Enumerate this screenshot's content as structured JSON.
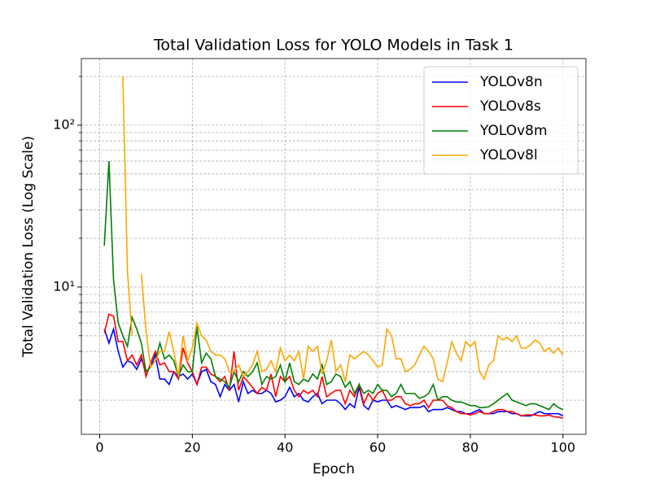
{
  "chart_data": {
    "type": "line",
    "title": "Total Validation Loss for YOLO Models in Task 1",
    "xlabel": "Epoch",
    "ylabel": "Total Validation Loss (Log Scale)",
    "x": [
      1,
      2,
      3,
      4,
      5,
      6,
      7,
      8,
      9,
      10,
      11,
      12,
      13,
      14,
      15,
      16,
      17,
      18,
      19,
      20,
      21,
      22,
      23,
      24,
      25,
      26,
      27,
      28,
      29,
      30,
      31,
      32,
      33,
      34,
      35,
      36,
      37,
      38,
      39,
      40,
      41,
      42,
      43,
      44,
      45,
      46,
      47,
      48,
      49,
      50,
      51,
      52,
      53,
      54,
      55,
      56,
      57,
      58,
      59,
      60,
      61,
      62,
      63,
      64,
      65,
      66,
      67,
      68,
      69,
      70,
      71,
      72,
      73,
      74,
      75,
      76,
      77,
      78,
      79,
      80,
      81,
      82,
      83,
      84,
      85,
      86,
      87,
      88,
      89,
      90,
      91,
      92,
      93,
      94,
      95,
      96,
      97,
      98,
      99,
      100
    ],
    "series": [
      {
        "name": "YOLOv8n",
        "color": "#0000ff",
        "values": [
          5.5,
          4.5,
          5.5,
          4.0,
          3.2,
          3.5,
          3.4,
          3.1,
          3.6,
          3.0,
          3.2,
          3.8,
          2.7,
          2.7,
          2.5,
          3.0,
          2.8,
          2.9,
          2.7,
          2.9,
          2.5,
          3.0,
          3.1,
          2.6,
          2.5,
          2.1,
          2.5,
          2.3,
          2.5,
          1.95,
          2.6,
          2.2,
          2.3,
          2.2,
          2.2,
          2.3,
          2.2,
          1.95,
          2.0,
          2.1,
          2.4,
          2.1,
          2.2,
          2.0,
          1.95,
          2.1,
          2.2,
          1.9,
          2.0,
          2.0,
          2.0,
          1.9,
          1.75,
          1.9,
          1.8,
          2.4,
          1.85,
          1.75,
          2.0,
          1.95,
          2.0,
          2.0,
          1.8,
          1.85,
          1.8,
          1.75,
          1.8,
          1.8,
          1.8,
          1.85,
          1.7,
          1.75,
          1.75,
          1.75,
          1.8,
          1.75,
          1.7,
          1.7,
          1.65,
          1.65,
          1.7,
          1.75,
          1.65,
          1.65,
          1.65,
          1.7,
          1.7,
          1.7,
          1.65,
          1.65,
          1.6,
          1.6,
          1.6,
          1.65,
          1.7,
          1.65,
          1.65,
          1.65,
          1.65,
          1.6
        ]
      },
      {
        "name": "YOLOv8s",
        "color": "#ff0000",
        "values": [
          5.2,
          6.8,
          6.6,
          4.6,
          4.6,
          3.5,
          3.8,
          3.3,
          3.8,
          2.8,
          3.4,
          4.0,
          3.3,
          3.4,
          3.0,
          3.0,
          2.7,
          4.2,
          3.4,
          3.0,
          2.5,
          3.2,
          3.2,
          2.9,
          2.8,
          2.6,
          2.8,
          2.3,
          4.0,
          2.3,
          2.8,
          2.6,
          2.4,
          2.2,
          2.4,
          2.3,
          2.9,
          2.1,
          2.8,
          2.6,
          2.8,
          2.3,
          2.1,
          2.3,
          2.2,
          2.3,
          2.1,
          2.8,
          2.1,
          2.2,
          2.3,
          2.3,
          1.9,
          2.3,
          2.1,
          2.5,
          1.9,
          2.2,
          2.0,
          2.2,
          2.3,
          2.0,
          2.0,
          2.1,
          2.1,
          1.9,
          1.85,
          1.9,
          1.9,
          2.0,
          1.8,
          2.0,
          2.0,
          2.0,
          1.85,
          1.8,
          1.7,
          1.65,
          1.65,
          1.62,
          1.65,
          1.7,
          1.65,
          1.65,
          1.7,
          1.75,
          1.75,
          1.7,
          1.7,
          1.65,
          1.6,
          1.62,
          1.62,
          1.62,
          1.6,
          1.6,
          1.62,
          1.58,
          1.57,
          1.55
        ]
      },
      {
        "name": "YOLOv8m",
        "color": "#008000",
        "values": [
          18,
          60,
          11,
          6,
          5,
          4.3,
          6.5,
          5.5,
          4.5,
          3.0,
          3.2,
          3.5,
          4.5,
          3.6,
          3.8,
          3.5,
          2.8,
          3.3,
          3.0,
          3.0,
          5.7,
          3.4,
          3.9,
          3.6,
          2.8,
          2.7,
          2.6,
          2.4,
          3.0,
          2.6,
          3.0,
          2.8,
          3.0,
          3.4,
          2.5,
          2.8,
          2.7,
          2.8,
          3.3,
          2.6,
          3.4,
          2.6,
          2.5,
          2.7,
          2.6,
          2.9,
          2.7,
          3.3,
          2.5,
          2.6,
          2.9,
          2.8,
          2.4,
          2.6,
          2.2,
          2.5,
          2.2,
          2.3,
          2.2,
          2.5,
          2.3,
          2.3,
          2.1,
          2.2,
          2.5,
          2.2,
          2.2,
          2.2,
          2.05,
          2.1,
          2.2,
          2.5,
          2.0,
          2.1,
          2.1,
          2.0,
          1.95,
          1.95,
          1.9,
          1.85,
          1.85,
          1.8,
          1.8,
          1.82,
          1.9,
          2.0,
          2.1,
          2.2,
          2.0,
          1.95,
          1.9,
          1.85,
          1.9,
          1.9,
          1.85,
          1.8,
          1.75,
          1.9,
          1.8,
          1.75
        ]
      },
      {
        "name": "YOLOv8l",
        "color": "#ffa500",
        "values": [
          null,
          null,
          null,
          null,
          200,
          12.5,
          5.0,
          null,
          12,
          5.4,
          3.2,
          3.5,
          4.0,
          4.0,
          5.3,
          4.0,
          2.8,
          5.0,
          3.5,
          4.2,
          6.0,
          5.0,
          4.7,
          4.0,
          3.8,
          3.8,
          3.6,
          3.0,
          3.0,
          3.3,
          2.8,
          3.0,
          3.3,
          4.0,
          3.0,
          3.1,
          3.5,
          3.0,
          4.2,
          3.5,
          3.8,
          3.5,
          4.0,
          2.7,
          4.3,
          4.0,
          4.3,
          2.9,
          3.5,
          4.7,
          3.0,
          3.3,
          2.6,
          3.8,
          3.6,
          3.8,
          4.0,
          3.8,
          3.5,
          3.2,
          3.3,
          5.5,
          5.0,
          3.6,
          3.6,
          3.0,
          3.1,
          3.3,
          3.8,
          4.3,
          4.0,
          3.6,
          2.7,
          2.6,
          3.4,
          4.6,
          3.9,
          3.5,
          4.6,
          4.3,
          4.6,
          3.0,
          2.7,
          3.3,
          3.5,
          5.0,
          4.7,
          4.9,
          4.6,
          5.0,
          4.2,
          4.2,
          4.4,
          4.7,
          4.5,
          4.0,
          4.2,
          3.9,
          4.2,
          3.8
        ]
      }
    ],
    "xlim": [
      -3.95,
      104.95
    ],
    "xticks": [
      0,
      20,
      40,
      60,
      80,
      100
    ],
    "ylim": [
      1.23,
      258
    ],
    "ylog": true,
    "yticks": [
      {
        "value": 10,
        "label": "10¹"
      },
      {
        "value": 100,
        "label": "10²"
      }
    ],
    "yminorticks": [
      2,
      3,
      4,
      5,
      6,
      7,
      8,
      9,
      20,
      30,
      40,
      50,
      60,
      70,
      80,
      90,
      200
    ],
    "grid": true,
    "legend": "upper right"
  }
}
